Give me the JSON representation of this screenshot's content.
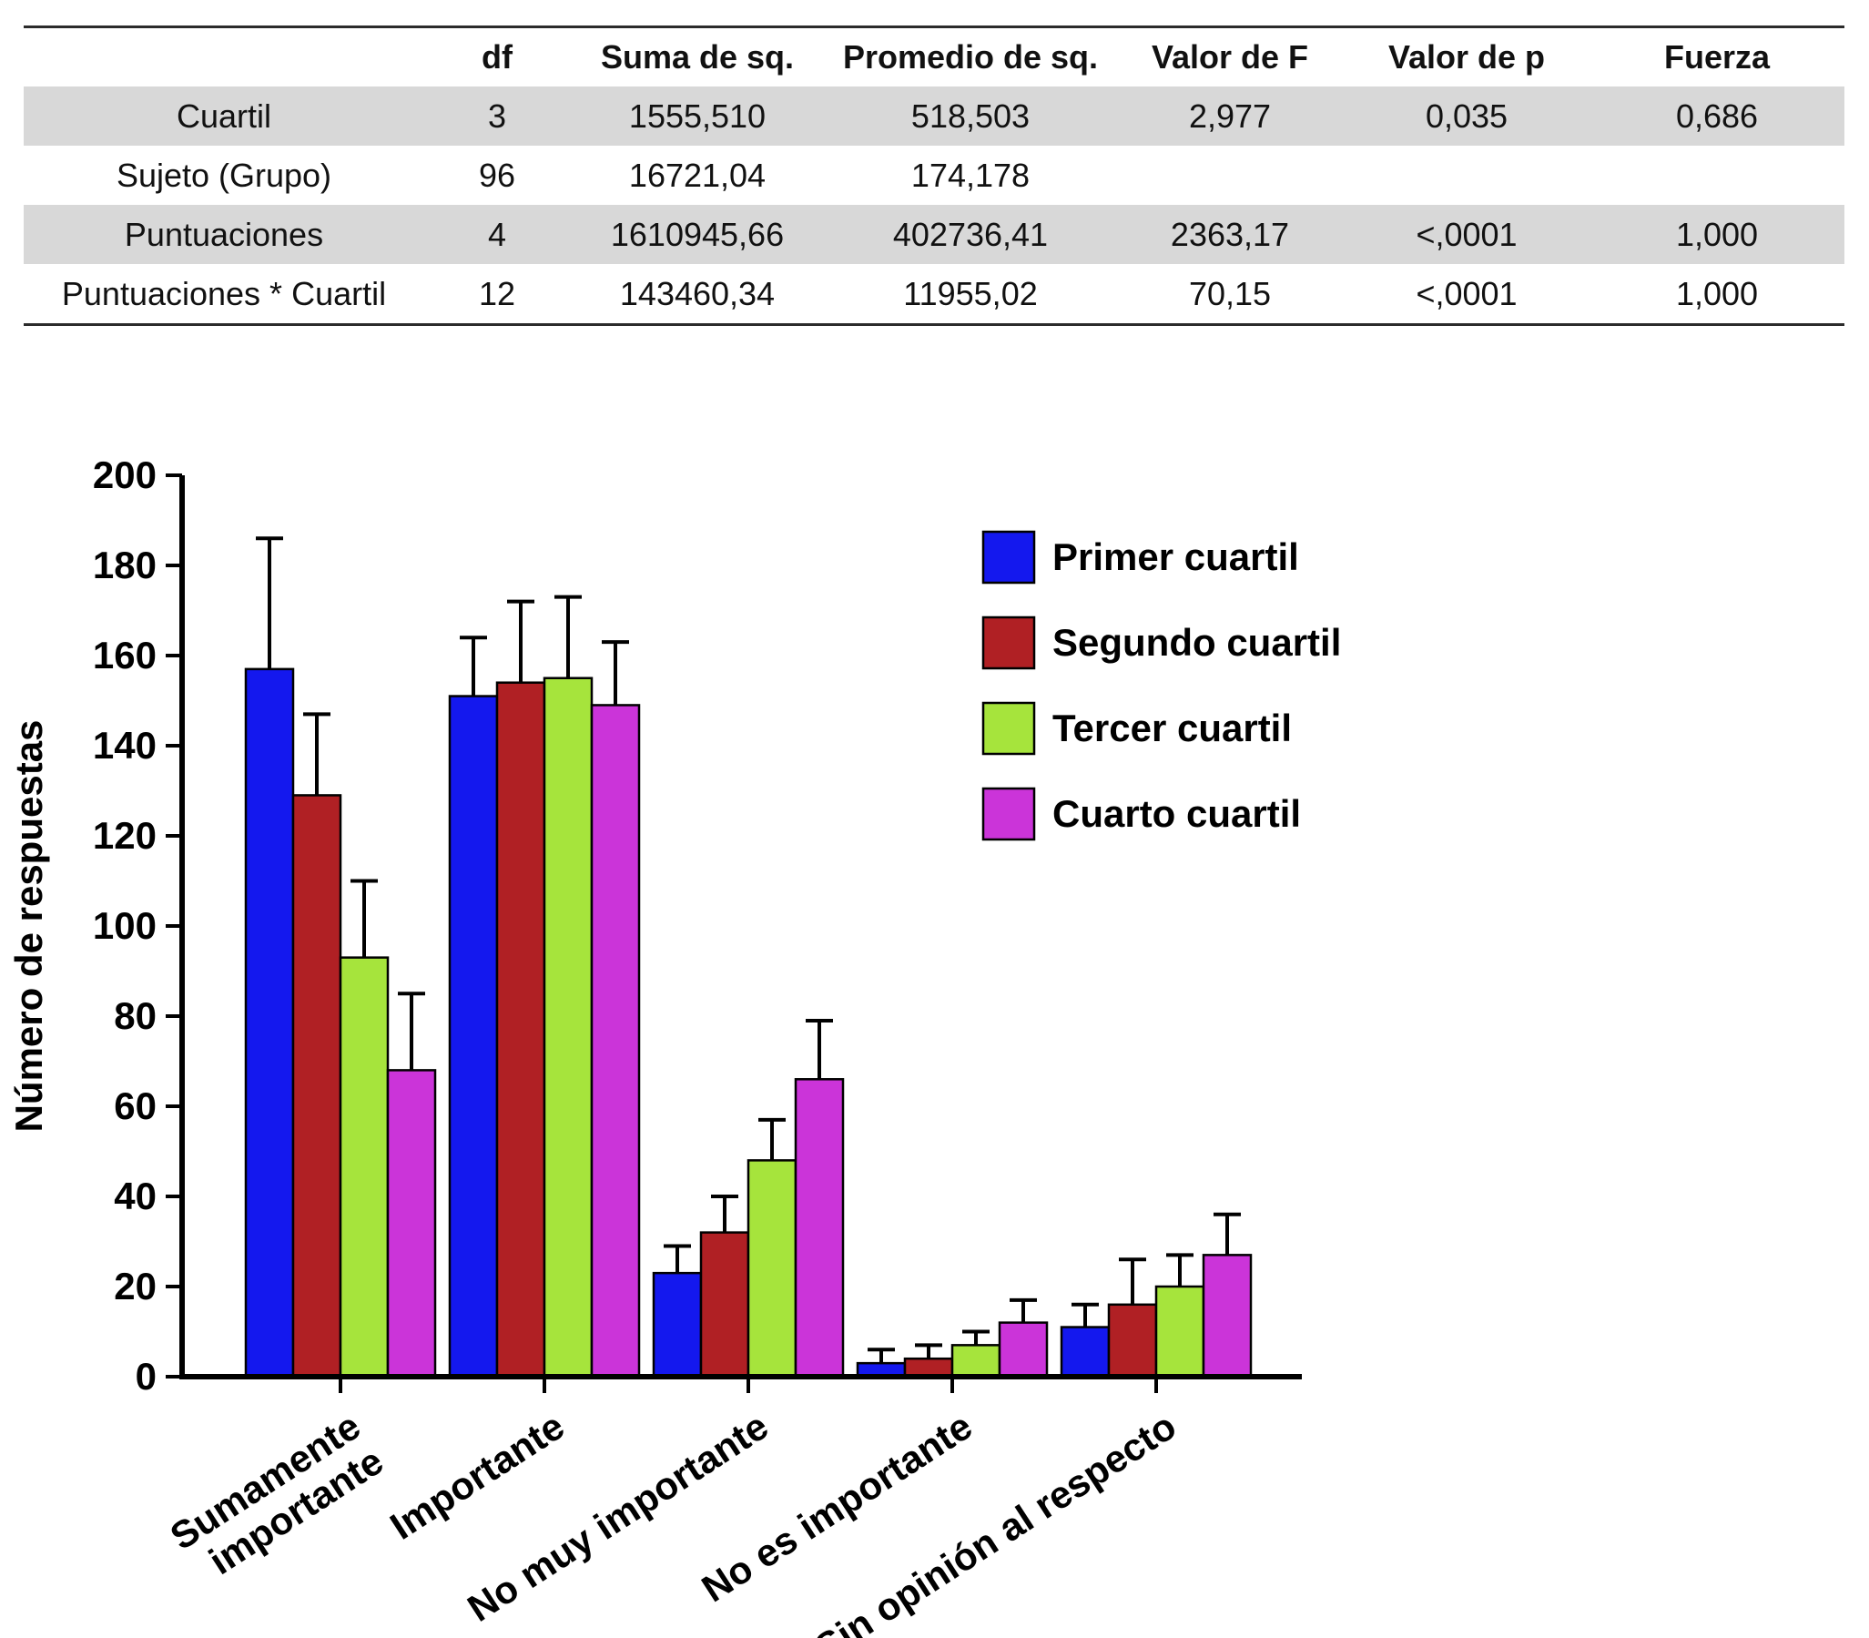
{
  "table": {
    "headers": [
      "",
      "df",
      "Suma de sq.",
      "Promedio de sq.",
      "Valor de F",
      "Valor de p",
      "Fuerza"
    ],
    "rows": [
      {
        "cells": [
          "Cuartil",
          "3",
          "1555,510",
          "518,503",
          "2,977",
          "0,035",
          "0,686"
        ],
        "shaded": true
      },
      {
        "cells": [
          "Sujeto (Grupo)",
          "96",
          "16721,04",
          "174,178",
          "",
          "",
          ""
        ],
        "shaded": false
      },
      {
        "cells": [
          "Puntuaciones",
          "4",
          "1610945,66",
          "402736,41",
          "2363,17",
          "<,0001",
          "1,000"
        ],
        "shaded": true
      },
      {
        "cells": [
          "Puntuaciones * Cuartil",
          "12",
          "143460,34",
          "11955,02",
          "70,15",
          "<,0001",
          "1,000"
        ],
        "shaded": false
      }
    ],
    "shade_color": "#d8d8d8"
  },
  "chart_data": {
    "type": "bar",
    "title": "",
    "xlabel": "",
    "ylabel": "Número de respuestas",
    "ylim": [
      0,
      200
    ],
    "ytick_step": 20,
    "grid": false,
    "legend_position": "inside-upper-right",
    "categories": [
      "Sumamente\nimportante",
      "Importante",
      "No muy importante",
      "No es importante",
      "Sin opinión al respecto"
    ],
    "series": [
      {
        "name": "Primer cuartil",
        "color": "#1418ee",
        "values": [
          157,
          151,
          23,
          3,
          11
        ],
        "errors": [
          29,
          13,
          6,
          3,
          5
        ]
      },
      {
        "name": "Segundo cuartil",
        "color": "#b02024",
        "values": [
          129,
          154,
          32,
          4,
          16
        ],
        "errors": [
          18,
          18,
          8,
          3,
          10
        ]
      },
      {
        "name": "Tercer cuartil",
        "color": "#a6e43c",
        "values": [
          93,
          155,
          48,
          7,
          20
        ],
        "errors": [
          17,
          18,
          9,
          3,
          7
        ]
      },
      {
        "name": "Cuarto cuartil",
        "color": "#cb34d9",
        "values": [
          68,
          149,
          66,
          12,
          27
        ],
        "errors": [
          17,
          14,
          13,
          5,
          9
        ]
      }
    ],
    "axis_color": "#000000",
    "error_bar_color": "#000000"
  }
}
